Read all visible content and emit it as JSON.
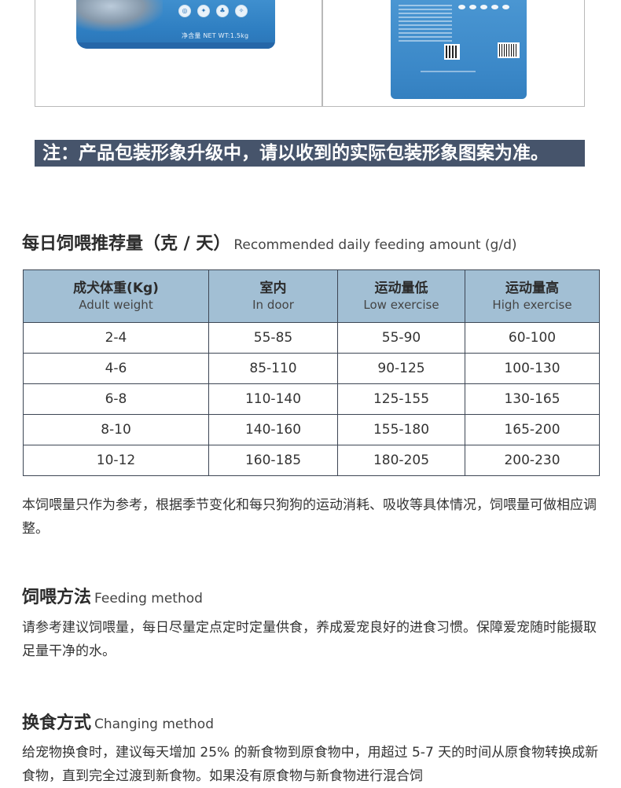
{
  "product_images": {
    "bag_left": {
      "net_weight_label": "净含量 NET WT:1.5kg",
      "feature_icons": [
        "icon-1",
        "icon-2",
        "icon-3",
        "icon-4"
      ]
    },
    "bag_right": {}
  },
  "notice": "注：产品包装形象升级中，请以收到的实际包装形象图案为准。",
  "feeding_amount": {
    "title_cn": "每日饲喂推荐量（克 / 天）",
    "title_en": "Recommended daily feeding amount (g/d)",
    "columns": [
      {
        "cn": "成犬体重(Kg)",
        "en": "Adult weight"
      },
      {
        "cn": "室内",
        "en": "In door"
      },
      {
        "cn": "运动量低",
        "en": "Low exercise"
      },
      {
        "cn": "运动量高",
        "en": "High exercise"
      }
    ],
    "rows": [
      [
        "2-4",
        "55-85",
        "55-90",
        "60-100"
      ],
      [
        "4-6",
        "85-110",
        "90-125",
        "100-130"
      ],
      [
        "6-8",
        "110-140",
        "125-155",
        "130-165"
      ],
      [
        "8-10",
        "140-160",
        "155-180",
        "165-200"
      ],
      [
        "10-12",
        "160-185",
        "180-205",
        "200-230"
      ]
    ],
    "note": "本饲喂量只作为参考，根据季节变化和每只狗狗的运动消耗、吸收等具体情况，饲喂量可做相应调整。"
  },
  "feeding_method": {
    "title_cn": "饲喂方法",
    "title_en": "Feeding method",
    "text": "请参考建议饲喂量，每日尽量定点定时定量供食，养成爱宠良好的进食习惯。保障爱宠随时能摄取足量干净的水。"
  },
  "changing_method": {
    "title_cn": "换食方式",
    "title_en": "Changing method",
    "text": "给宠物换食时，建议每天增加 25% 的新食物到原食物中，用超过 5-7 天的时间从原食物转换成新食物，直到完全过渡到新食物。如果没有原食物与新食物进行混合饲"
  },
  "colors": {
    "notice_bg": "#46546b",
    "table_header_bg": "#a2bfd4",
    "table_border": "#3d4654",
    "bag_blue": "#3b88c8"
  }
}
